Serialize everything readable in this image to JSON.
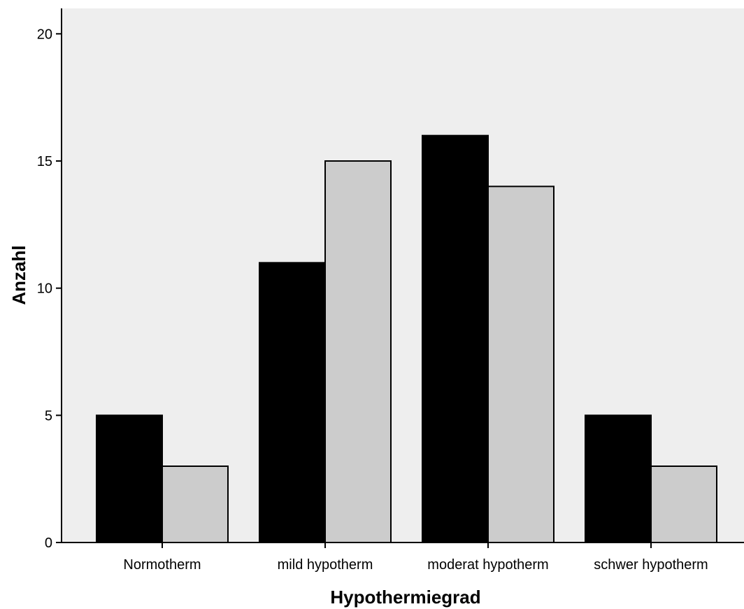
{
  "chart_data": {
    "type": "bar",
    "title": "",
    "xlabel": "Hypothermiegrad",
    "ylabel": "Anzahl",
    "categories": [
      "Normotherm",
      "mild hypotherm",
      "moderat hypotherm",
      "schwer hypotherm"
    ],
    "series": [
      {
        "values": [
          5,
          11,
          16,
          5
        ],
        "color": "#000000"
      },
      {
        "values": [
          3,
          15,
          14,
          3
        ],
        "color": "#cccccc"
      }
    ],
    "ylim": [
      0,
      21
    ],
    "yticks": [
      0,
      5,
      10,
      15,
      20
    ],
    "ytick_labels": [
      "0",
      "5",
      "10",
      "15",
      "20"
    ],
    "grid": false,
    "legend": "none",
    "plot_background": "#eeeeee",
    "bar_outline": "#000000"
  }
}
